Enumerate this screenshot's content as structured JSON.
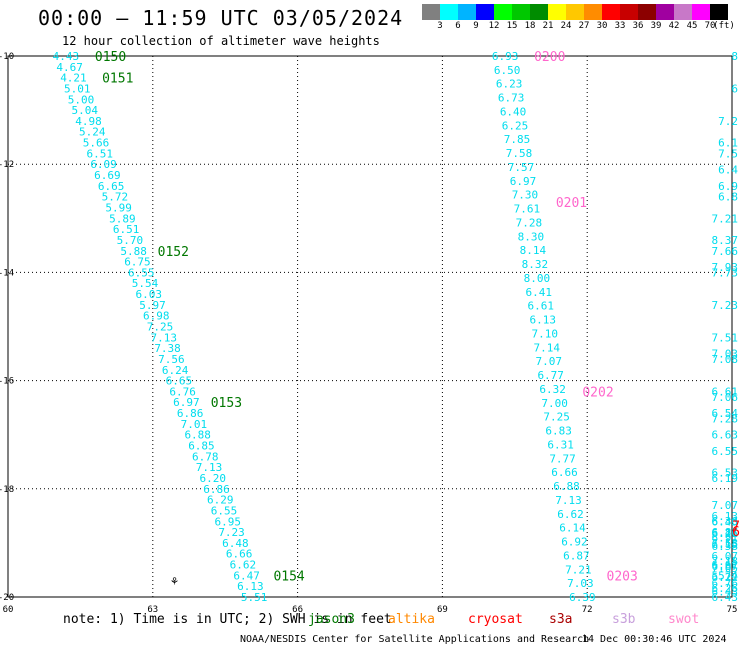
{
  "title": "00:00 — 11:59 UTC 03/05/2024",
  "subtitle": "12 hour collection of altimeter wave heights",
  "colorbar": {
    "colors": [
      "#808080",
      "#00ffff",
      "#00b4ff",
      "#0000ff",
      "#00ff00",
      "#00c800",
      "#008c00",
      "#ffff00",
      "#ffc800",
      "#ff8c00",
      "#ff0000",
      "#c80000",
      "#8c0000",
      "#a000a0",
      "#c878c8",
      "#ff00ff",
      "#000000"
    ],
    "labels": [
      "3",
      "6",
      "9",
      "12",
      "15",
      "18",
      "21",
      "24",
      "27",
      "30",
      "33",
      "36",
      "39",
      "42",
      "45",
      "70",
      "(ft)"
    ]
  },
  "axes": {
    "lon_ticks": [
      "60",
      "63",
      "66",
      "69",
      "72",
      "75"
    ],
    "lat_ticks": [
      "-10",
      "-12",
      "-14",
      "-16",
      "-18",
      "-20"
    ],
    "lon_range": [
      60,
      75
    ],
    "lat_range": [
      -20,
      -10
    ]
  },
  "tracks": [
    {
      "color": "#00ddee",
      "lon_start": 61.2,
      "lat_start": -10.0,
      "lon_end": 65.1,
      "lat_end": -20.0,
      "values": [
        "4.43",
        "4.67",
        "4.21",
        "5.01",
        "5.00",
        "5.04",
        "4.98",
        "5.24",
        "5.66",
        "6.51",
        "6.09",
        "6.69",
        "6.65",
        "5.72",
        "5.99",
        "5.89",
        "6.51",
        "5.70",
        "5.88",
        "6.75",
        "6.55",
        "5.54",
        "6.03",
        "5.97",
        "6.98",
        "7.25",
        "7.13",
        "7.38",
        "7.56",
        "6.24",
        "6.65",
        "6.76",
        "6.97",
        "6.86",
        "7.01",
        "6.88",
        "6.85",
        "6.78",
        "7.13",
        "6.20",
        "6.86",
        "6.29",
        "6.55",
        "6.95",
        "7.23",
        "6.48",
        "6.66",
        "6.62",
        "6.47",
        "6.13",
        "5.51"
      ]
    },
    {
      "color": "#00ddee",
      "lon_start": 70.3,
      "lat_start": -10.0,
      "lon_end": 71.9,
      "lat_end": -20.0,
      "values": [
        "6.93",
        "6.50",
        "6.23",
        "6.73",
        "6.40",
        "6.25",
        "7.85",
        "7.58",
        "7.57",
        "6.97",
        "7.30",
        "7.61",
        "7.28",
        "8.30",
        "8.14",
        "8.32",
        "8.00",
        "6.41",
        "6.61",
        "6.13",
        "7.10",
        "7.14",
        "7.07",
        "6.77",
        "6.32",
        "7.00",
        "7.25",
        "6.83",
        "6.31",
        "7.77",
        "6.66",
        "6.88",
        "7.13",
        "6.62",
        "6.14",
        "6.92",
        "6.87",
        "7.21",
        "7.03",
        "6.39"
      ]
    }
  ],
  "right_edge_values": [
    {
      "lat": -10.0,
      "text": "8"
    },
    {
      "lat": -10.6,
      "text": "6"
    },
    {
      "lat": -11.2,
      "text": "7.2"
    },
    {
      "lat": -11.6,
      "text": "6.1"
    },
    {
      "lat": -11.8,
      "text": "7.5"
    },
    {
      "lat": -12.1,
      "text": "6.4"
    },
    {
      "lat": -12.4,
      "text": "6.9"
    },
    {
      "lat": -12.6,
      "text": "6.8"
    },
    {
      "lat": -13.0,
      "text": "7.21"
    },
    {
      "lat": -13.4,
      "text": "8.37"
    },
    {
      "lat": -13.6,
      "text": "7.66"
    },
    {
      "lat": -13.9,
      "text": "7.93"
    },
    {
      "lat": -14.0,
      "text": "7.73"
    },
    {
      "lat": -14.6,
      "text": "7.23"
    },
    {
      "lat": -15.2,
      "text": "7.51"
    },
    {
      "lat": -15.5,
      "text": "7.03"
    },
    {
      "lat": -15.6,
      "text": "7.08"
    },
    {
      "lat": -16.2,
      "text": "6.61"
    },
    {
      "lat": -16.3,
      "text": "7.06"
    },
    {
      "lat": -16.6,
      "text": "6.54"
    },
    {
      "lat": -16.7,
      "text": "7.28"
    },
    {
      "lat": -17.0,
      "text": "6.63"
    },
    {
      "lat": -17.3,
      "text": "6.55"
    },
    {
      "lat": -17.7,
      "text": "6.53"
    },
    {
      "lat": -17.8,
      "text": "6.19"
    },
    {
      "lat": -18.3,
      "text": "7.07"
    },
    {
      "lat": -18.5,
      "text": "6.13"
    },
    {
      "lat": -18.6,
      "text": "6.43"
    },
    {
      "lat": -18.8,
      "text": "6.87"
    },
    {
      "lat": -18.9,
      "text": "6.91"
    },
    {
      "lat": -19.4,
      "text": "6.61"
    },
    {
      "lat": -19.6,
      "text": "5.74"
    },
    {
      "lat": -19.6,
      "text": "5.4"
    },
    {
      "lat": -19.9,
      "text": "6.43"
    },
    {
      "lat": -20.0,
      "text": "6.43"
    }
  ],
  "right_edge_lower": [
    {
      "y": 525,
      "text": "6.36"
    },
    {
      "y": 537,
      "text": "6.26"
    },
    {
      "y": 537,
      "text": "6.11"
    },
    {
      "y": 547,
      "text": "7.58"
    },
    {
      "y": 548,
      "text": "6.15"
    },
    {
      "y": 550,
      "text": "6.58"
    },
    {
      "y": 560,
      "text": "6.07"
    },
    {
      "y": 565,
      "text": "7.18"
    },
    {
      "y": 570,
      "text": "6.87"
    },
    {
      "y": 572,
      "text": "7.05"
    },
    {
      "y": 581,
      "text": "6.22"
    },
    {
      "y": 587,
      "text": "6.76"
    },
    {
      "y": 592,
      "text": "6.26"
    }
  ],
  "time_labels": [
    {
      "text": "0150",
      "color": "#007700",
      "lon": 61.8,
      "lat": -10.0
    },
    {
      "text": "0151",
      "color": "#007700",
      "lon": 61.95,
      "lat": -10.4
    },
    {
      "text": "0152",
      "color": "#007700",
      "lon": 63.1,
      "lat": -13.6
    },
    {
      "text": "0153",
      "color": "#007700",
      "lon": 64.2,
      "lat": -16.4
    },
    {
      "text": "0154",
      "color": "#007700",
      "lon": 65.5,
      "lat": -19.6
    },
    {
      "text": "0200",
      "color": "#ff66cc",
      "lon": 70.9,
      "lat": -10.0
    },
    {
      "text": "0201",
      "color": "#ff66cc",
      "lon": 71.35,
      "lat": -12.7
    },
    {
      "text": "0202",
      "color": "#ff66cc",
      "lon": 71.9,
      "lat": -16.2
    },
    {
      "text": "0203",
      "color": "#ff66cc",
      "lon": 72.4,
      "lat": -19.6
    }
  ],
  "right_edge_red": [
    {
      "lat": -18.7,
      "text": "7"
    },
    {
      "lat": -18.8,
      "text": "6"
    }
  ],
  "island_symbol": {
    "lon": 63.45,
    "lat": -19.7,
    "text": "⚘"
  },
  "note": "note: 1) Time is in UTC; 2) SWH is in feet",
  "missions": [
    {
      "name": "jason3",
      "color": "#007700"
    },
    {
      "name": "altika",
      "color": "#ff8800"
    },
    {
      "name": "cryosat",
      "color": "#ff0000"
    },
    {
      "name": "s3a",
      "color": "#aa0000"
    },
    {
      "name": "s3b",
      "color": "#c8a0dc"
    },
    {
      "name": "swot",
      "color": "#ff88cc"
    }
  ],
  "footer_left": "NOAA/NESDIS Center for Satellite Applications and Research",
  "footer_right": "14 Dec 00:30:46 UTC 2024"
}
